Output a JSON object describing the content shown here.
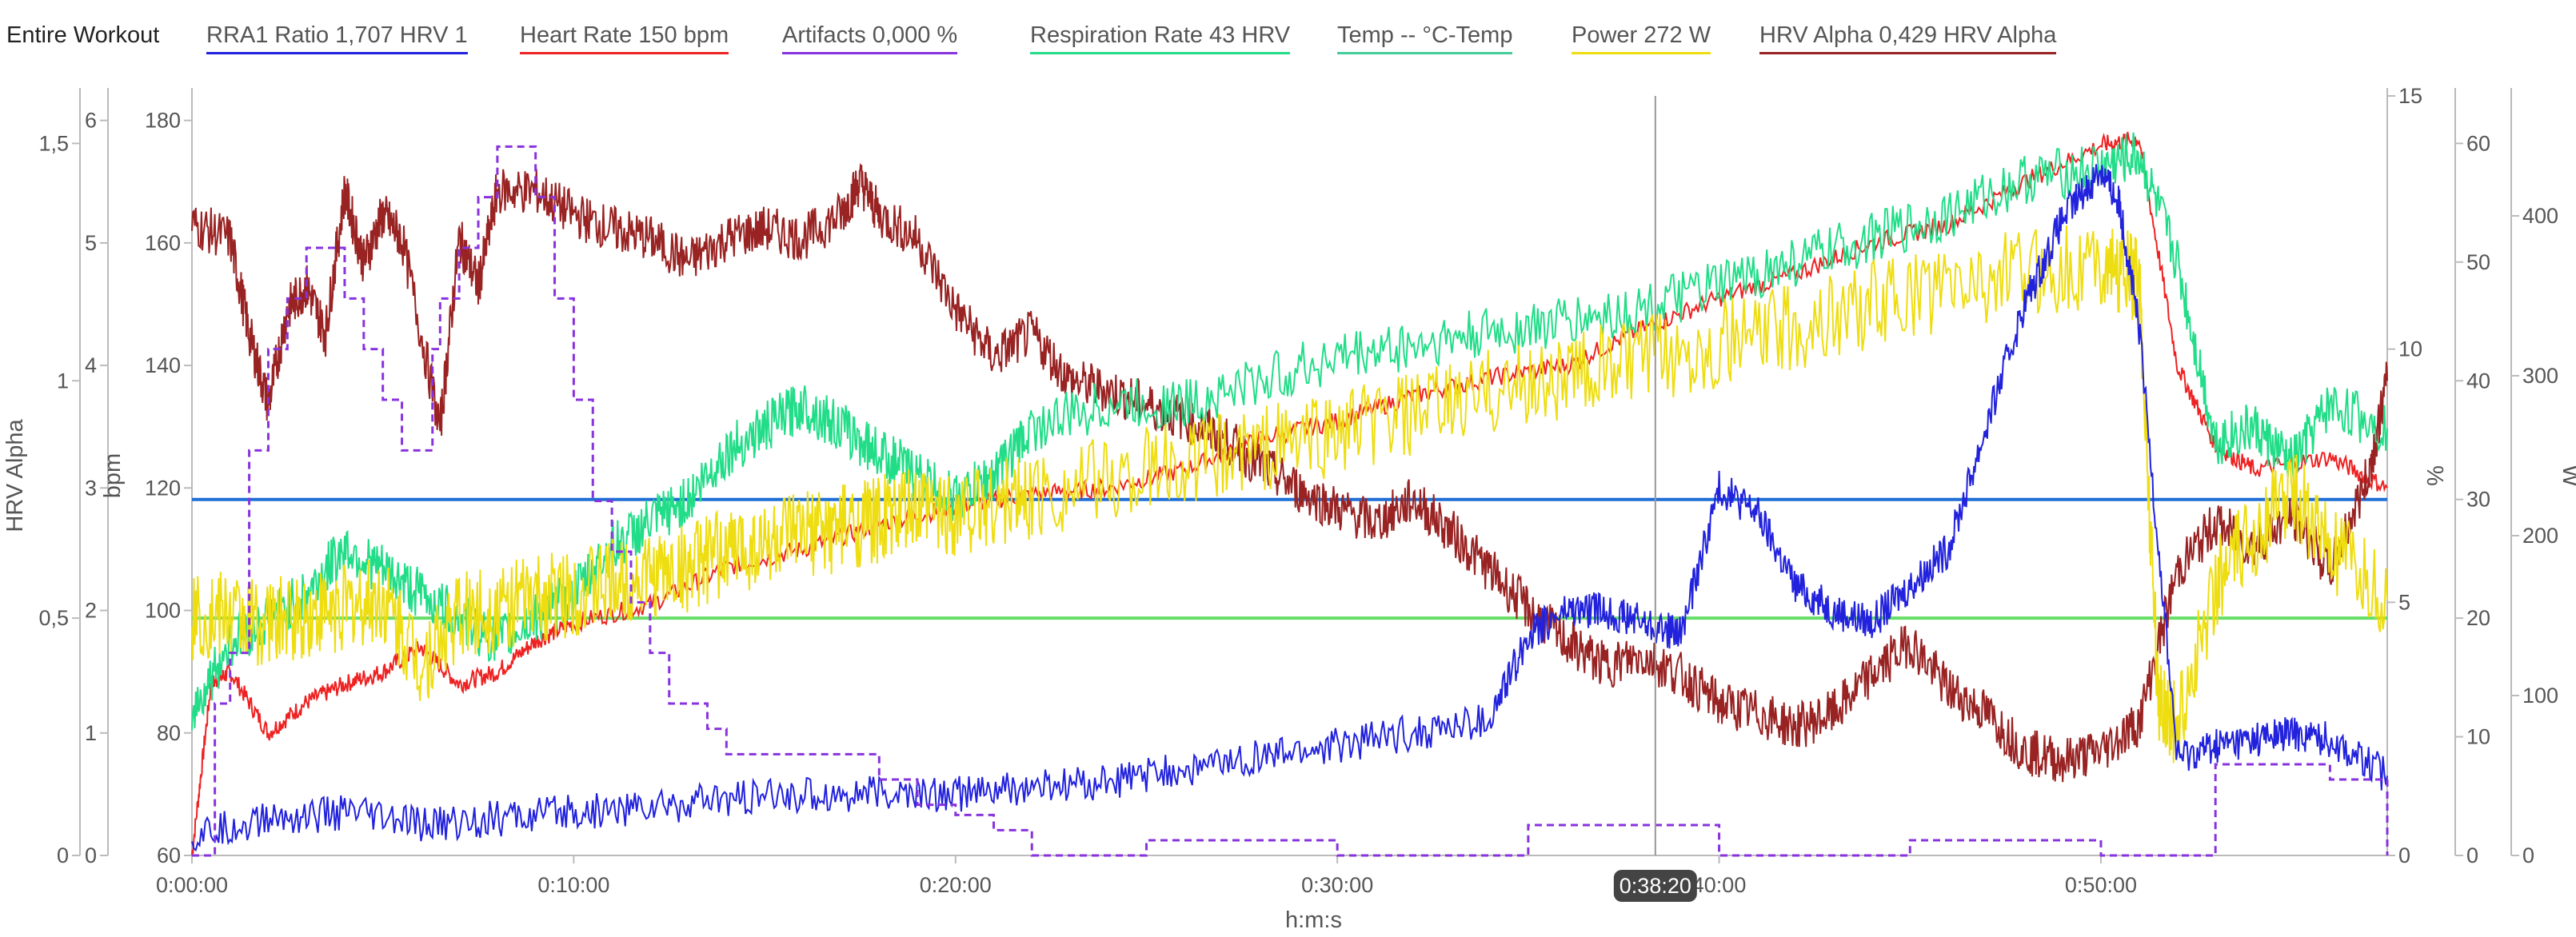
{
  "legend": {
    "scope_label": "Entire Workout",
    "items": [
      {
        "label": "RRA1 Ratio  1,707 HRV 1",
        "color": "#2222dd"
      },
      {
        "label": "Heart Rate  150 bpm",
        "color": "#ee2222"
      },
      {
        "label": "Artifacts  0,000 %",
        "color": "#8833dd"
      },
      {
        "label": "Respiration Rate  43 HRV",
        "color": "#22dd88"
      },
      {
        "label": "Temp  -- °C-Temp",
        "color": "#44cc99"
      },
      {
        "label": "Power  272 W",
        "color": "#eedd11"
      },
      {
        "label": "HRV Alpha  0,429 HRV Alpha",
        "color": "#992222"
      }
    ]
  },
  "chart_data": {
    "type": "line",
    "xlabel": "h:m:s",
    "x_unit": "minutes",
    "xlim": [
      0,
      57.5
    ],
    "x_tick_labels": [
      "0:00:00",
      "0:10:00",
      "0:20:00",
      "0:30:00",
      "40:00",
      "0:50:00"
    ],
    "cursor": {
      "x": 38.33,
      "label": "0:38:20"
    },
    "axes": {
      "hrv_alpha": {
        "label": "HRV Alpha",
        "range": [
          0,
          1.6
        ],
        "ticks": [
          "0",
          "0,5",
          "1",
          "1,5"
        ]
      },
      "rra1": {
        "range": [
          0,
          6.2
        ],
        "ticks": [
          "0",
          "1",
          "2",
          "3",
          "4",
          "5",
          "6"
        ]
      },
      "bpm": {
        "label": "bpm",
        "range": [
          60,
          184
        ],
        "ticks": [
          "60",
          "80",
          "100",
          "120",
          "140",
          "160",
          "180"
        ]
      },
      "percent": {
        "label": "%",
        "range": [
          0,
          15
        ],
        "ticks": [
          "0",
          "5",
          "10",
          "15"
        ]
      },
      "resp": {
        "range": [
          0,
          64
        ],
        "ticks": [
          "0",
          "10",
          "20",
          "30",
          "40",
          "50",
          "60"
        ]
      },
      "watts": {
        "label": "W",
        "range": [
          0,
          475
        ],
        "ticks": [
          "0",
          "100",
          "200",
          "300",
          "400"
        ]
      }
    },
    "reference_lines": [
      {
        "axis": "hrv_alpha",
        "value": 0.75,
        "color": "#1f6fd6"
      },
      {
        "axis": "hrv_alpha",
        "value": 0.5,
        "color": "#66dd66"
      }
    ],
    "series": [
      {
        "name": "Heart Rate",
        "axis": "bpm",
        "color": "#ee2222",
        "style": "solid",
        "x": [
          0,
          0.5,
          1,
          2,
          3,
          4,
          5,
          6,
          7,
          8,
          9,
          10,
          12,
          14,
          16,
          18,
          20,
          22,
          24,
          26,
          28,
          30,
          32,
          34,
          36,
          38,
          40,
          42,
          44,
          46,
          48,
          50,
          51,
          52,
          53,
          54,
          56,
          57.5
        ],
        "y": [
          60,
          88,
          90,
          80,
          85,
          88,
          90,
          94,
          88,
          90,
          95,
          98,
          101,
          107,
          110,
          114,
          117,
          119,
          120,
          123,
          128,
          131,
          135,
          138,
          140,
          146,
          151,
          155,
          160,
          163,
          170,
          176,
          177,
          140,
          127,
          123,
          125,
          120
        ]
      },
      {
        "name": "HRV Alpha",
        "axis": "hrv_alpha",
        "color": "#992222",
        "style": "solid",
        "x": [
          0,
          1,
          1.5,
          2,
          2.5,
          3,
          3.5,
          4,
          4.5,
          5,
          5.5,
          6.5,
          7,
          7.5,
          8,
          9,
          10,
          11,
          12,
          13,
          14,
          15,
          16,
          17,
          17.5,
          18,
          19,
          20,
          21,
          22,
          23,
          24,
          25,
          26,
          27,
          28,
          29,
          30,
          31,
          32,
          33,
          34,
          35,
          36,
          37,
          38,
          39,
          40,
          41,
          42,
          43,
          44,
          45,
          46,
          47,
          48,
          49,
          50,
          51,
          52,
          53,
          54,
          55,
          56,
          57,
          57.5
        ],
        "y": [
          1.33,
          1.3,
          1.1,
          0.95,
          1.15,
          1.2,
          1.1,
          1.4,
          1.25,
          1.35,
          1.3,
          0.9,
          1.3,
          1.2,
          1.4,
          1.4,
          1.35,
          1.32,
          1.3,
          1.25,
          1.3,
          1.32,
          1.3,
          1.35,
          1.42,
          1.35,
          1.3,
          1.15,
          1.05,
          1.1,
          1.0,
          0.98,
          0.95,
          0.92,
          0.88,
          0.82,
          0.77,
          0.73,
          0.7,
          0.75,
          0.68,
          0.6,
          0.52,
          0.45,
          0.4,
          0.42,
          0.38,
          0.32,
          0.3,
          0.27,
          0.3,
          0.38,
          0.45,
          0.35,
          0.3,
          0.22,
          0.2,
          0.22,
          0.28,
          0.6,
          0.7,
          0.65,
          0.72,
          0.6,
          0.8,
          1.0
        ]
      },
      {
        "name": "Respiration Rate",
        "axis": "resp",
        "color": "#22dd88",
        "style": "solid",
        "x": [
          0,
          1,
          2,
          3,
          4,
          5,
          6,
          7,
          8,
          9,
          10,
          11,
          12,
          13,
          14,
          15,
          16,
          17,
          18,
          19,
          20,
          21,
          22,
          24,
          26,
          28,
          30,
          32,
          34,
          36,
          38,
          40,
          42,
          44,
          46,
          48,
          50,
          51,
          52,
          53,
          54,
          55,
          56,
          57.5
        ],
        "y": [
          12,
          18,
          20,
          22,
          26,
          24,
          22,
          20,
          18,
          20,
          22,
          26,
          28,
          30,
          34,
          36,
          38,
          36,
          34,
          32,
          30,
          32,
          36,
          38,
          38,
          40,
          42,
          43,
          44,
          45,
          46,
          48,
          50,
          52,
          54,
          57,
          58,
          59,
          50,
          35,
          36,
          33,
          38,
          36
        ]
      },
      {
        "name": "Power",
        "axis": "watts",
        "color": "#eedd11",
        "style": "solid",
        "x": [
          0,
          1,
          2,
          3,
          4,
          5,
          6,
          7,
          8,
          9,
          10,
          11,
          12,
          13,
          14,
          15,
          16,
          17,
          18,
          19,
          20,
          21,
          22,
          24,
          26,
          28,
          30,
          32,
          34,
          36,
          38,
          40,
          42,
          44,
          46,
          48,
          50,
          51,
          51.5,
          52,
          53,
          54,
          55,
          56,
          57.5
        ],
        "y": [
          150,
          150,
          145,
          150,
          155,
          160,
          120,
          150,
          155,
          160,
          165,
          170,
          175,
          180,
          190,
          195,
          200,
          205,
          210,
          215,
          215,
          220,
          225,
          235,
          245,
          255,
          265,
          275,
          290,
          300,
          310,
          320,
          330,
          345,
          355,
          365,
          370,
          360,
          100,
          80,
          170,
          200,
          230,
          190,
          160
        ]
      },
      {
        "name": "RRA1 Ratio",
        "axis": "rra1",
        "color": "#2222dd",
        "style": "solid",
        "x": [
          0,
          2,
          4,
          6,
          8,
          10,
          12,
          14,
          16,
          18,
          20,
          22,
          24,
          26,
          28,
          30,
          32,
          34,
          35,
          36,
          37,
          38,
          39,
          40,
          41,
          42,
          43,
          44,
          45,
          46,
          47,
          48,
          49,
          50,
          50.5,
          51,
          52,
          53,
          54,
          55,
          56,
          57.5
        ],
        "y": [
          0.15,
          0.3,
          0.35,
          0.25,
          0.3,
          0.35,
          0.4,
          0.45,
          0.5,
          0.5,
          0.5,
          0.55,
          0.6,
          0.7,
          0.8,
          0.9,
          1.0,
          1.1,
          1.8,
          2.0,
          2.0,
          1.9,
          1.8,
          3.0,
          2.8,
          2.2,
          2.0,
          1.9,
          2.2,
          2.5,
          3.5,
          4.5,
          5.2,
          5.6,
          5.3,
          4.3,
          0.8,
          0.9,
          0.95,
          1.0,
          0.95,
          0.65
        ]
      },
      {
        "name": "Artifacts",
        "axis": "percent",
        "color": "#8833dd",
        "style": "dashed",
        "x": [
          0,
          0.6,
          1,
          1.5,
          2,
          2.5,
          3,
          3.5,
          4,
          4.5,
          5,
          5.5,
          6.3,
          6.5,
          7,
          7.5,
          8,
          8.5,
          9,
          9.5,
          10,
          10.5,
          11,
          11.5,
          12,
          12.5,
          13,
          13.5,
          14,
          15,
          16,
          17,
          18,
          19,
          20,
          21,
          22,
          25,
          30,
          35,
          40,
          45,
          50,
          52,
          53,
          55,
          56,
          57.5
        ],
        "y": [
          0,
          3,
          4,
          8,
          10,
          11,
          12,
          12,
          11,
          10,
          9,
          8,
          10,
          11,
          12,
          13,
          14,
          14,
          13,
          11,
          9,
          7,
          6,
          5,
          4,
          3,
          3,
          2.5,
          2,
          2,
          2,
          2,
          1.5,
          1,
          0.8,
          0.5,
          0,
          0.3,
          0,
          0.6,
          0,
          0.3,
          0,
          0,
          1.8,
          1.8,
          1.5,
          0
        ]
      }
    ]
  }
}
